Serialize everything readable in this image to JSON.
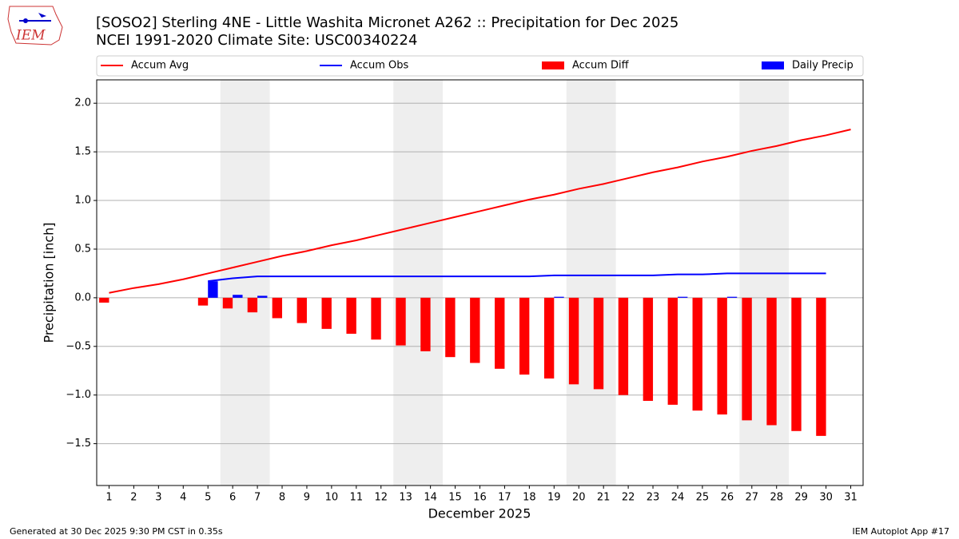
{
  "chart_data": {
    "type": "bar_line",
    "title": "[SOSO2] Sterling 4NE - Little Washita Micronet A262 :: Precipitation for Dec 2025",
    "subtitle": "NCEI 1991-2020 Climate Site: USC00340224",
    "logo_text": "IEM",
    "x_label": "December 2025",
    "y_label": "Precipitation [inch]",
    "footer_left": "Generated at 30 Dec 2025 9:30 PM CST in 0.35s",
    "footer_right": "IEM Autoplot App #17",
    "x": [
      1,
      2,
      3,
      4,
      5,
      6,
      7,
      8,
      9,
      10,
      11,
      12,
      13,
      14,
      15,
      16,
      17,
      18,
      19,
      20,
      21,
      22,
      23,
      24,
      25,
      26,
      27,
      28,
      29,
      30,
      31
    ],
    "xlim": [
      0.5,
      31.5
    ],
    "xticks": [
      1,
      2,
      3,
      4,
      5,
      6,
      7,
      8,
      9,
      10,
      11,
      12,
      13,
      14,
      15,
      16,
      17,
      18,
      19,
      20,
      21,
      22,
      23,
      24,
      25,
      26,
      27,
      28,
      29,
      30,
      31
    ],
    "ylim": [
      -1.93,
      2.24
    ],
    "yticks": [
      {
        "value": -1.5,
        "label": "−1.5"
      },
      {
        "value": -1.0,
        "label": "−1.0"
      },
      {
        "value": -0.5,
        "label": "−0.5"
      },
      {
        "value": 0,
        "label": "0.0"
      },
      {
        "value": 0.5,
        "label": "0.5"
      },
      {
        "value": 1.0,
        "label": "1.0"
      },
      {
        "value": 1.5,
        "label": "1.5"
      },
      {
        "value": 2.0,
        "label": "2.0"
      }
    ],
    "grid": true,
    "weekend_spans": [
      [
        5.5,
        7.5
      ],
      [
        12.5,
        14.5
      ],
      [
        19.5,
        21.5
      ],
      [
        26.5,
        28.5
      ]
    ],
    "series": [
      {
        "name": "Accum Avg",
        "kind": "line",
        "color": "#ff0000",
        "values": [
          0.05,
          0.1,
          0.14,
          0.19,
          0.25,
          0.31,
          0.37,
          0.43,
          0.48,
          0.54,
          0.59,
          0.65,
          0.71,
          0.77,
          0.83,
          0.89,
          0.95,
          1.01,
          1.06,
          1.12,
          1.17,
          1.23,
          1.29,
          1.34,
          1.4,
          1.45,
          1.51,
          1.56,
          1.62,
          1.67,
          1.73
        ]
      },
      {
        "name": "Accum Obs",
        "kind": "line",
        "color": "#0000ff",
        "values": [
          null,
          null,
          null,
          null,
          0.17,
          0.2,
          0.22,
          0.22,
          0.22,
          0.22,
          0.22,
          0.22,
          0.22,
          0.22,
          0.22,
          0.22,
          0.22,
          0.22,
          0.23,
          0.23,
          0.23,
          0.23,
          0.23,
          0.24,
          0.24,
          0.25,
          0.25,
          0.25,
          0.25,
          0.25,
          null
        ]
      },
      {
        "name": "Accum Diff",
        "kind": "bar_left",
        "color": "#ff0000",
        "values": [
          -0.05,
          null,
          null,
          null,
          -0.08,
          -0.11,
          -0.15,
          -0.21,
          -0.26,
          -0.32,
          -0.37,
          -0.43,
          -0.49,
          -0.55,
          -0.61,
          -0.67,
          -0.73,
          -0.79,
          -0.83,
          -0.89,
          -0.94,
          -1.0,
          -1.06,
          -1.1,
          -1.16,
          -1.2,
          -1.26,
          -1.31,
          -1.37,
          -1.42,
          null
        ]
      },
      {
        "name": "Daily Precip",
        "kind": "bar_right",
        "color": "#0000ff",
        "values": [
          0,
          0,
          0,
          0,
          0.17,
          0.03,
          0.02,
          0,
          0,
          0,
          0,
          0,
          0,
          0,
          0,
          0,
          0,
          0,
          0.01,
          0,
          0,
          0,
          0,
          0.01,
          0,
          0.01,
          0,
          0,
          0,
          0,
          null
        ]
      }
    ]
  }
}
